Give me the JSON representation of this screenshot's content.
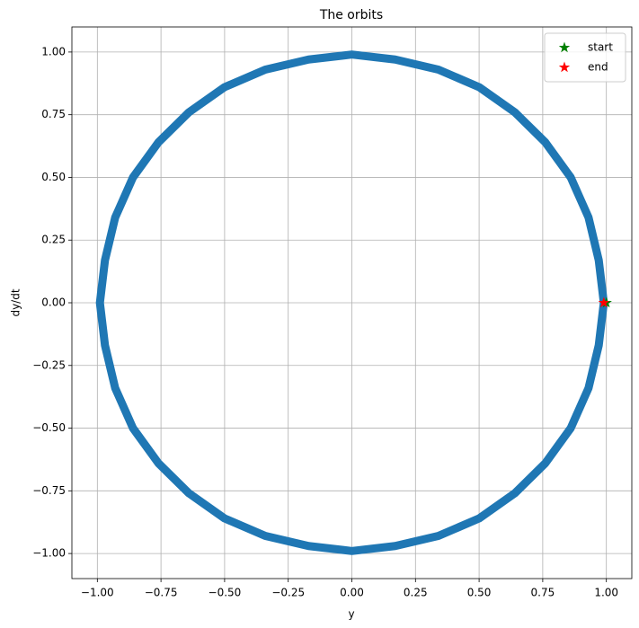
{
  "chart_data": {
    "type": "line",
    "title": "The orbits",
    "x_label": "y",
    "y_label": "dy/dt",
    "xlim": [
      -1.1,
      1.1
    ],
    "ylim": [
      -1.1,
      1.1
    ],
    "xticks": [
      {
        "value": -1,
        "label": "−1.00"
      },
      {
        "value": -0.75,
        "label": "−0.75"
      },
      {
        "value": -0.5,
        "label": "−0.50"
      },
      {
        "value": -0.25,
        "label": "−0.25"
      },
      {
        "value": 0,
        "label": "0.00"
      },
      {
        "value": 0.25,
        "label": "0.25"
      },
      {
        "value": 0.5,
        "label": "0.50"
      },
      {
        "value": 0.75,
        "label": "0.75"
      },
      {
        "value": 1,
        "label": "1.00"
      }
    ],
    "yticks": [
      {
        "value": -1,
        "label": "−1.00"
      },
      {
        "value": -0.75,
        "label": "−0.75"
      },
      {
        "value": -0.5,
        "label": "−0.50"
      },
      {
        "value": -0.25,
        "label": "−0.25"
      },
      {
        "value": 0,
        "label": "0.00"
      },
      {
        "value": 0.25,
        "label": "0.25"
      },
      {
        "value": 0.5,
        "label": "0.50"
      },
      {
        "value": 0.75,
        "label": "0.75"
      },
      {
        "value": 1,
        "label": "1.00"
      }
    ],
    "grid": true,
    "legend": "upper right",
    "series": [
      {
        "color": "#1f77b4",
        "marker": "line",
        "x": [
          0.99,
          0.97,
          0.93,
          0.86,
          0.76,
          0.64,
          0.5,
          0.34,
          0.17,
          0,
          -0.17,
          -0.34,
          -0.5,
          -0.64,
          -0.76,
          -0.86,
          -0.93,
          -0.97,
          -0.99,
          -0.97,
          -0.93,
          -0.86,
          -0.76,
          -0.64,
          -0.5,
          -0.34,
          -0.17,
          0,
          0.17,
          0.34,
          0.5,
          0.64,
          0.76,
          0.86,
          0.93,
          0.97,
          0.99
        ],
        "values": [
          0,
          0.17,
          0.34,
          0.5,
          0.64,
          0.76,
          0.86,
          0.93,
          0.97,
          0.99,
          0.97,
          0.93,
          0.86,
          0.76,
          0.64,
          0.5,
          0.34,
          0.17,
          0,
          -0.17,
          -0.34,
          -0.5,
          -0.64,
          -0.76,
          -0.86,
          -0.93,
          -0.97,
          -0.99,
          -0.97,
          -0.93,
          -0.86,
          -0.76,
          -0.64,
          -0.5,
          -0.34,
          -0.17,
          0
        ]
      },
      {
        "name": "start",
        "color": "green",
        "marker": "star",
        "x": [
          1.0
        ],
        "values": [
          0
        ]
      },
      {
        "name": "end",
        "color": "red",
        "marker": "star",
        "x": [
          0.99
        ],
        "values": [
          0
        ]
      }
    ]
  }
}
